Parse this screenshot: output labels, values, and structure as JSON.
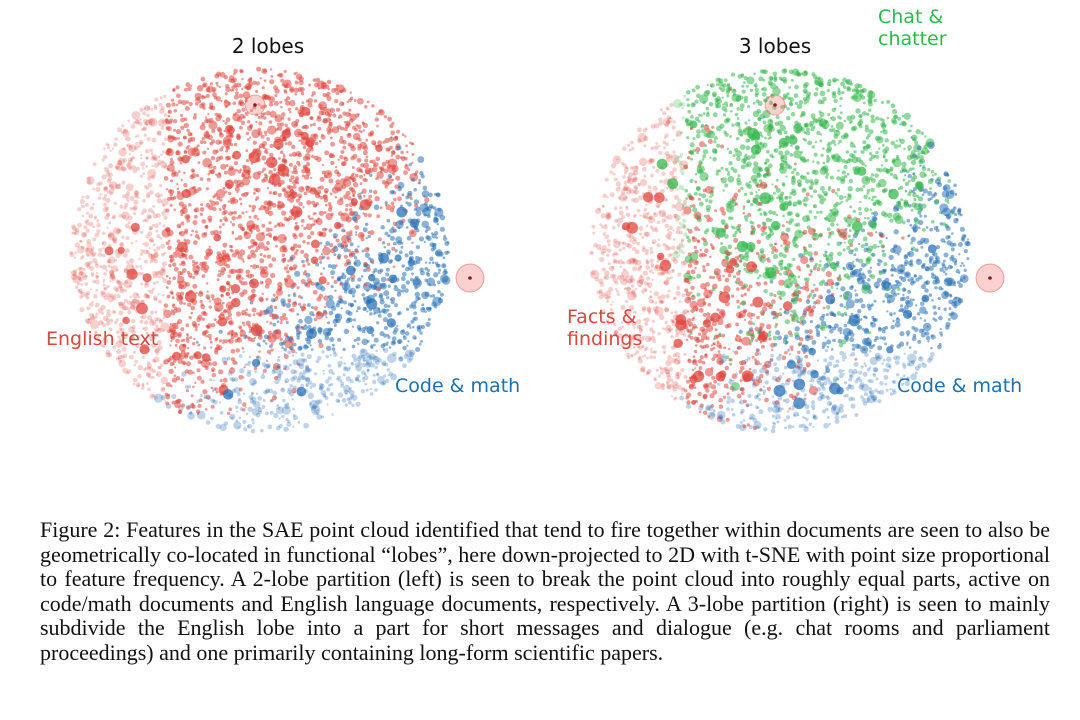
{
  "figure": {
    "panels": [
      {
        "title": "2 lobes",
        "labels": [
          {
            "text": "English text",
            "color": "#d9473e",
            "lobe": "english"
          },
          {
            "text": "Code & math",
            "color": "#1f6fb0",
            "lobe": "code"
          }
        ]
      },
      {
        "title": "3 lobes",
        "labels": [
          {
            "line1": "Chat &",
            "line2": "chatter",
            "color": "#2eb84a",
            "lobe": "chat"
          },
          {
            "line1": "Facts &",
            "line2": "findings",
            "color": "#d9473e",
            "lobe": "facts"
          },
          {
            "text": "Code & math",
            "color": "#1f6fb0",
            "lobe": "code"
          }
        ]
      }
    ],
    "colors": {
      "english": "#e0453d",
      "code": "#2a72b8",
      "chat": "#35b84c",
      "facts": "#e0453d"
    }
  },
  "caption": {
    "text": "Figure 2: Features in the SAE point cloud identified that tend to fire together within documents are seen to also be geometrically co-located in functional “lobes”, here down-projected to 2D with t-SNE with point size proportional to feature frequency. A 2-lobe partition (left) is seen to break the point cloud into roughly equal parts, active on code/math documents and English language documents, respectively. A 3-lobe partition (right) is seen to mainly subdivide the English lobe into a part for short messages and dialogue (e.g. chat rooms and parliament proceedings) and one primarily containing long-form scientific papers."
  }
}
